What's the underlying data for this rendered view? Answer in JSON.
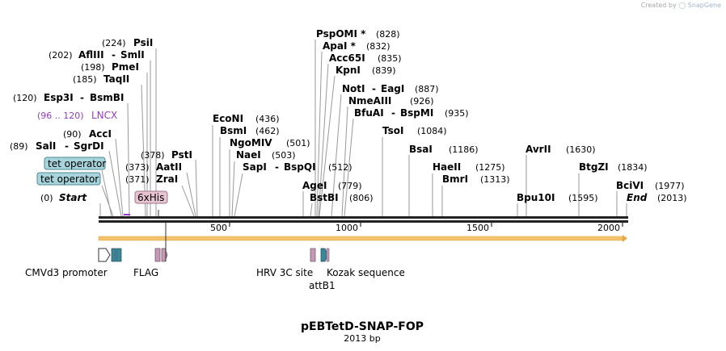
{
  "header": {
    "credit_prefix": "Created by",
    "credit_brand": "SnapGene"
  },
  "plasmid": {
    "name": "pEBTetD-SNAP-FOP",
    "size_label": "2013 bp"
  },
  "sites": [
    {
      "name": "PsiI",
      "pos": "(224)"
    },
    {
      "name": "AflIII",
      "pos": "(202)",
      "pair": "SmlI"
    },
    {
      "name": "PmeI",
      "pos": "(198)"
    },
    {
      "name": "TaqII",
      "pos": "(185)"
    },
    {
      "name": "Esp3I",
      "pos": "(120)",
      "pair": "BsmBI"
    },
    {
      "name": "LNCX",
      "pos": "(96 .. 120)"
    },
    {
      "name": "AccI",
      "pos": "(90)"
    },
    {
      "name": "SalI",
      "pos": "(89)",
      "pair": "SgrDI"
    },
    {
      "name": "Start",
      "pos": "(0)"
    },
    {
      "name": "PstI",
      "pos": "(378)"
    },
    {
      "name": "AatII",
      "pos": "(373)"
    },
    {
      "name": "ZraI",
      "pos": "(371)"
    },
    {
      "name": "EcoNI",
      "pos": "(436)"
    },
    {
      "name": "BsmI",
      "pos": "(462)"
    },
    {
      "name": "NgoMIV",
      "pos": "(501)"
    },
    {
      "name": "NaeI",
      "pos": "(503)"
    },
    {
      "name": "SapI",
      "pos": "(512)",
      "pair": "BspQI"
    },
    {
      "name": "PspOMI *",
      "pos": "(828)"
    },
    {
      "name": "ApaI *",
      "pos": "(832)"
    },
    {
      "name": "Acc65I",
      "pos": "(835)"
    },
    {
      "name": "KpnI",
      "pos": "(839)"
    },
    {
      "name": "NotI",
      "pos": "(887)",
      "pair": "EagI"
    },
    {
      "name": "NmeAIII",
      "pos": "(926)"
    },
    {
      "name": "BfuAI",
      "pos": "(935)",
      "pair": "BspMI"
    },
    {
      "name": "AgeI",
      "pos": "(779)"
    },
    {
      "name": "BstBI",
      "pos": "(806)"
    },
    {
      "name": "TsoI",
      "pos": "(1084)"
    },
    {
      "name": "BsaI",
      "pos": "(1186)"
    },
    {
      "name": "HaeII",
      "pos": "(1275)"
    },
    {
      "name": "BmrI",
      "pos": "(1313)"
    },
    {
      "name": "AvrII",
      "pos": "(1630)"
    },
    {
      "name": "Bpu10I",
      "pos": "(1595)"
    },
    {
      "name": "BtgZI",
      "pos": "(1834)"
    },
    {
      "name": "BciVI",
      "pos": "(1977)"
    },
    {
      "name": "End",
      "pos": "(2013)"
    }
  ],
  "boxes": {
    "tet_operator_1": "tet operator",
    "tet_operator_2": "tet operator",
    "his": "6xHis"
  },
  "features": {
    "cmv": "CMVd3 promoter",
    "flag": "FLAG",
    "hrv": "HRV 3C site",
    "attb1": "attB1",
    "kozak": "Kozak sequence"
  },
  "axis": {
    "ticks": [
      "500",
      "1000",
      "1500",
      "2000"
    ]
  },
  "colors": {
    "lncx": "#9a38c9",
    "tet_box": "#a8d4dc",
    "his_box": "#e7c4d1",
    "orf": "#f4c26b",
    "tet_feature": "#3a8799",
    "tag_feature": "#c49ab4"
  }
}
